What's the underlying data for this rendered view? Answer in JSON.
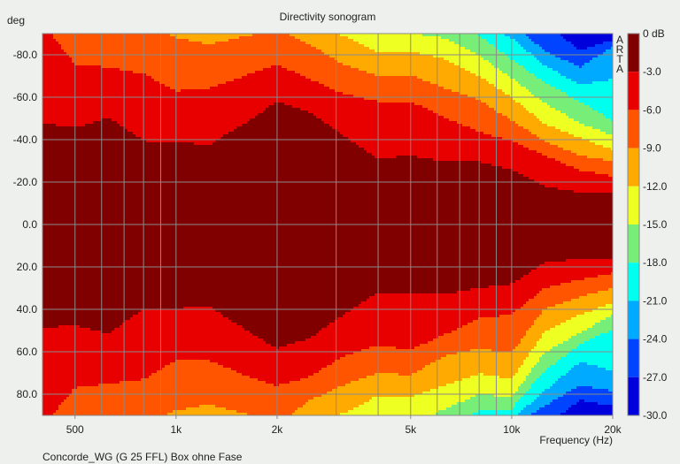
{
  "chart_data": {
    "type": "heatmap",
    "title": "Directivity sonogram",
    "xlabel": "Frequency (Hz)",
    "ylabel": "deg",
    "x_scale": "log",
    "xlim": [
      400,
      20000
    ],
    "ylim": [
      -90,
      90
    ],
    "y_inverted": true,
    "grid": true,
    "x_ticks": [
      {
        "value": 500,
        "label": "500"
      },
      {
        "value": 1000,
        "label": "1k"
      },
      {
        "value": 2000,
        "label": "2k"
      },
      {
        "value": 5000,
        "label": "5k"
      },
      {
        "value": 10000,
        "label": "10k"
      },
      {
        "value": 20000,
        "label": "20k"
      }
    ],
    "x_gridlines": [
      500,
      600,
      700,
      800,
      900,
      1000,
      2000,
      3000,
      4000,
      5000,
      6000,
      7000,
      8000,
      9000,
      10000
    ],
    "y_ticks": [
      {
        "value": -80,
        "label": "-80.0"
      },
      {
        "value": -60,
        "label": "-60.0"
      },
      {
        "value": -40,
        "label": "-40.0"
      },
      {
        "value": -20,
        "label": "-20.0"
      },
      {
        "value": 0,
        "label": "0.0"
      },
      {
        "value": 20,
        "label": "20.0"
      },
      {
        "value": 40,
        "label": "40.0"
      },
      {
        "value": 60,
        "label": "60.0"
      },
      {
        "value": 80,
        "label": "80.0"
      }
    ],
    "colorbar": {
      "labels": [
        "0 dB",
        "-3.0",
        "-6.0",
        "-9.0",
        "-12.0",
        "-15.0",
        "-18.0",
        "-21.0",
        "-24.0",
        "-27.0",
        "-30.0"
      ],
      "colors": [
        "#800000",
        "#e80000",
        "#ff5500",
        "#ffaa00",
        "#eeff22",
        "#77ee77",
        "#00ffee",
        "#00aaff",
        "#0044ff",
        "#0000dd"
      ]
    },
    "contour_levels_db": [
      -3,
      -6,
      -9,
      -12,
      -15,
      -18,
      -21,
      -24,
      -27
    ],
    "frequencies": [
      400,
      500,
      630,
      800,
      1000,
      1250,
      1600,
      2000,
      2500,
      3150,
      4000,
      5000,
      6300,
      8000,
      10000,
      12500,
      16000,
      20000
    ],
    "contour_angles_negative_side": [
      [
        -47.7,
        -95,
        -95,
        -95,
        -95,
        -95,
        -95,
        -95,
        -95
      ],
      [
        -45.6,
        -75.4,
        -95,
        -95,
        -95,
        -95,
        -95,
        -95,
        -95
      ],
      [
        -50.5,
        -74,
        -95,
        -95,
        -95,
        -95,
        -95,
        -95,
        -95
      ],
      [
        -39.4,
        -71,
        -95,
        -95,
        -95,
        -95,
        -95,
        -95,
        -95
      ],
      [
        -39,
        -63,
        -88,
        -95,
        -95,
        -95,
        -95,
        -95,
        -95
      ],
      [
        -37.3,
        -64,
        -85,
        -95,
        -95,
        -95,
        -95,
        -95,
        -95
      ],
      [
        -47.7,
        -70,
        -88.6,
        -95,
        -95,
        -95,
        -95,
        -95,
        -95
      ],
      [
        -58,
        -75.4,
        -92,
        -95,
        -95,
        -95,
        -95,
        -95,
        -95
      ],
      [
        -53,
        -68.5,
        -85,
        -95,
        -95,
        -95,
        -95,
        -95,
        -95
      ],
      [
        -42,
        -61.6,
        -75.4,
        -89,
        -95,
        -95,
        -95,
        -95,
        -95
      ],
      [
        -31,
        -58,
        -70,
        -81,
        -95,
        -95,
        -95,
        -95,
        -95
      ],
      [
        -32.5,
        -58,
        -70.4,
        -81.7,
        -90,
        -95,
        -95,
        -95,
        -95
      ],
      [
        -29.7,
        -50.5,
        -64.3,
        -78,
        -88,
        -95,
        -95,
        -95,
        -95
      ],
      [
        -29.7,
        -43.6,
        -58.8,
        -70,
        -79.6,
        -89,
        -95,
        -95,
        -95
      ],
      [
        -25.6,
        -39.4,
        -49,
        -60,
        -69,
        -78,
        -88,
        -95,
        -95
      ],
      [
        -18,
        -32.5,
        -39.4,
        -47.7,
        -57.4,
        -67,
        -75,
        -82,
        -95
      ],
      [
        -15.2,
        -25.6,
        -32.5,
        -40.8,
        -47.7,
        -58,
        -66,
        -74,
        -82
      ],
      [
        -15.2,
        -22.8,
        -29.7,
        -35.3,
        -42,
        -49,
        -68.5,
        -84,
        -87
      ]
    ],
    "contour_angles_positive_side": [
      [
        48.8,
        95,
        95,
        95,
        95,
        95,
        95,
        95,
        95
      ],
      [
        47.4,
        77,
        95,
        95,
        95,
        95,
        95,
        95,
        95
      ],
      [
        51.5,
        75,
        95,
        95,
        95,
        95,
        95,
        95,
        95
      ],
      [
        39.7,
        73,
        95,
        95,
        95,
        95,
        95,
        95,
        95
      ],
      [
        39.7,
        64,
        87.6,
        95,
        95,
        95,
        95,
        95,
        95
      ],
      [
        38.3,
        64,
        84.9,
        95,
        95,
        95,
        95,
        95,
        95
      ],
      [
        49.4,
        71,
        89,
        95,
        95,
        95,
        95,
        95,
        95
      ],
      [
        58.5,
        76,
        95,
        95,
        95,
        95,
        95,
        95,
        95
      ],
      [
        53.6,
        71.7,
        82.8,
        95,
        95,
        95,
        95,
        95,
        95
      ],
      [
        42.5,
        62,
        75.8,
        89,
        95,
        95,
        95,
        95,
        95
      ],
      [
        32,
        57,
        70,
        80.7,
        95,
        95,
        95,
        95,
        95
      ],
      [
        32.8,
        59,
        71,
        81.4,
        95,
        95,
        95,
        95,
        95
      ],
      [
        32.8,
        52,
        62,
        75.8,
        87,
        95,
        95,
        95,
        95
      ],
      [
        30,
        44,
        58.5,
        70.3,
        80,
        88,
        95,
        95,
        95
      ],
      [
        28,
        42.5,
        60.6,
        73,
        81.4,
        87,
        92,
        95,
        95
      ],
      [
        18.2,
        30,
        39.7,
        50.8,
        60.6,
        69,
        78.6,
        85.6,
        95
      ],
      [
        16,
        26,
        34,
        42.5,
        51,
        56.4,
        64.7,
        75.8,
        82.8
      ],
      [
        16,
        23,
        30,
        37,
        42.5,
        49.4,
        69,
        78.6,
        85.6
      ]
    ],
    "watermark": "ARTA",
    "caption": "Concorde_WG (G 25 FFL) Box ohne Fase"
  }
}
